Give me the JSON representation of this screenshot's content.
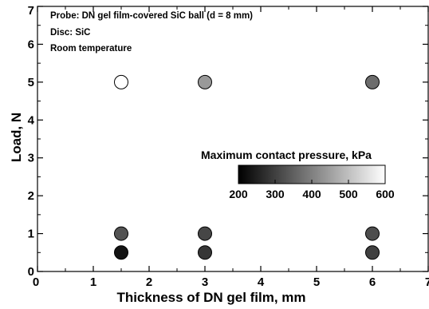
{
  "chart_data": {
    "type": "scatter",
    "title": "",
    "xlabel": "Thickness of DN gel film, mm",
    "ylabel": "Load, N",
    "xlim": [
      0,
      7
    ],
    "ylim": [
      0,
      7
    ],
    "x_ticks": [
      "0",
      "1",
      "2",
      "3",
      "4",
      "5",
      "6",
      "7"
    ],
    "y_ticks": [
      "0",
      "1",
      "2",
      "3",
      "4",
      "5",
      "6",
      "7"
    ],
    "grid": false,
    "annotations": [
      "Probe: DN gel film-covered SiC ball (d = 8 mm)",
      "Disc: SiC",
      "Room temperature"
    ],
    "colorbar": {
      "label": "Maximum contact pressure, kPa",
      "range": [
        200,
        600
      ],
      "ticks": [
        "200",
        "300",
        "400",
        "500",
        "600"
      ],
      "colors": [
        "#000000",
        "#ffffff"
      ]
    },
    "points": [
      {
        "x": 1.5,
        "y": 5.0,
        "pressure": 600
      },
      {
        "x": 3.0,
        "y": 5.0,
        "pressure": 440
      },
      {
        "x": 6.0,
        "y": 5.0,
        "pressure": 370
      },
      {
        "x": 1.5,
        "y": 1.0,
        "pressure": 330
      },
      {
        "x": 3.0,
        "y": 1.0,
        "pressure": 310
      },
      {
        "x": 6.0,
        "y": 1.0,
        "pressure": 320
      },
      {
        "x": 1.5,
        "y": 0.5,
        "pressure": 230
      },
      {
        "x": 3.0,
        "y": 0.5,
        "pressure": 285
      },
      {
        "x": 6.0,
        "y": 0.5,
        "pressure": 300
      }
    ]
  }
}
